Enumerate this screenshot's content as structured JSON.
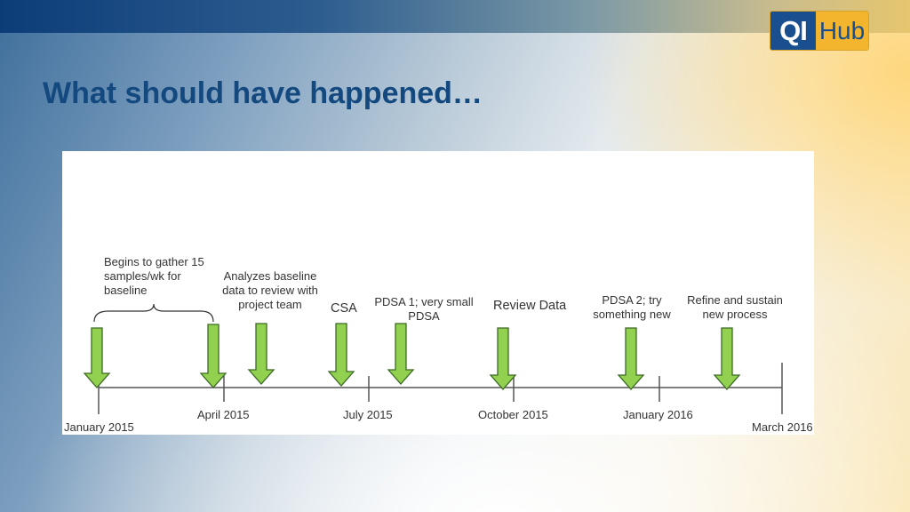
{
  "slide": {
    "title": "What should have happened…",
    "logo": {
      "left": "QI",
      "right": "Hub"
    }
  },
  "timeline": {
    "ticks": [
      {
        "label": "January 2015"
      },
      {
        "label": "April 2015"
      },
      {
        "label": "July 2015"
      },
      {
        "label": "October 2015"
      },
      {
        "label": "January 2016"
      },
      {
        "label": "March 2016"
      }
    ],
    "events": [
      {
        "label": "Begins to gather 15\nsamples/wk for\nbaseline"
      },
      {
        "label": "Analyzes baseline\ndata to review with\nproject team"
      },
      {
        "label": "CSA"
      },
      {
        "label": "PDSA 1; very small\nPDSA"
      },
      {
        "label": "Review  Data"
      },
      {
        "label": "PDSA 2; try\nsomething new"
      },
      {
        "label": "Refine and sustain\nnew process"
      }
    ],
    "colors": {
      "arrow_fill": "#92d050",
      "arrow_stroke": "#3b6a24",
      "axis": "#555555",
      "text": "#333333"
    }
  }
}
